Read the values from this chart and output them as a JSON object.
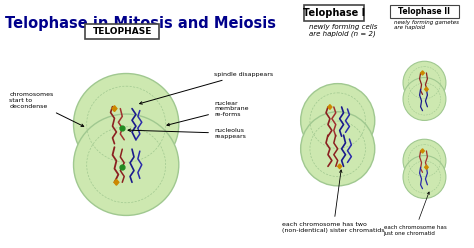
{
  "title": "Telophase in Mitosis and Meiosis",
  "title_color": "#00008B",
  "title_fontsize": 10.5,
  "bg_color": "#FFFFFF",
  "telophase_label": "TELOPHASE",
  "telophase_I_label": "Telophase I",
  "telophase_II_label": "Telophase II",
  "annotation_spindle": "spindle disappears",
  "annotation_nuclear": "nuclear\nmembrane\nre-forms",
  "annotation_nucleolus": "nucleolus\nreappears",
  "annotation_chromosomes": "chromosomes\nstart to\ndecondense",
  "annotation_haploid": "newly forming cells\nare haploid (n = 2)",
  "annotation_sister": "each chromosome has two\n(non-identical) sister chromatids",
  "annotation_haploid2": "newly forming gametes\nare haploid",
  "annotation_one_chromatid": "each chromosome has\njust one chromatid",
  "cell_outer_color": "#cde8b0",
  "cell_inner_color": "#dff0cc",
  "chr_red1": "#8B2020",
  "chr_red2": "#A03030",
  "chr_blue1": "#1a1a8B",
  "chr_blue2": "#2a2aAA",
  "centromere_color": "#CC8800",
  "nucleolus_color": "#228B22",
  "line_color": "#222222",
  "box_color": "#444444",
  "cell_edge_color": "#a0c890"
}
